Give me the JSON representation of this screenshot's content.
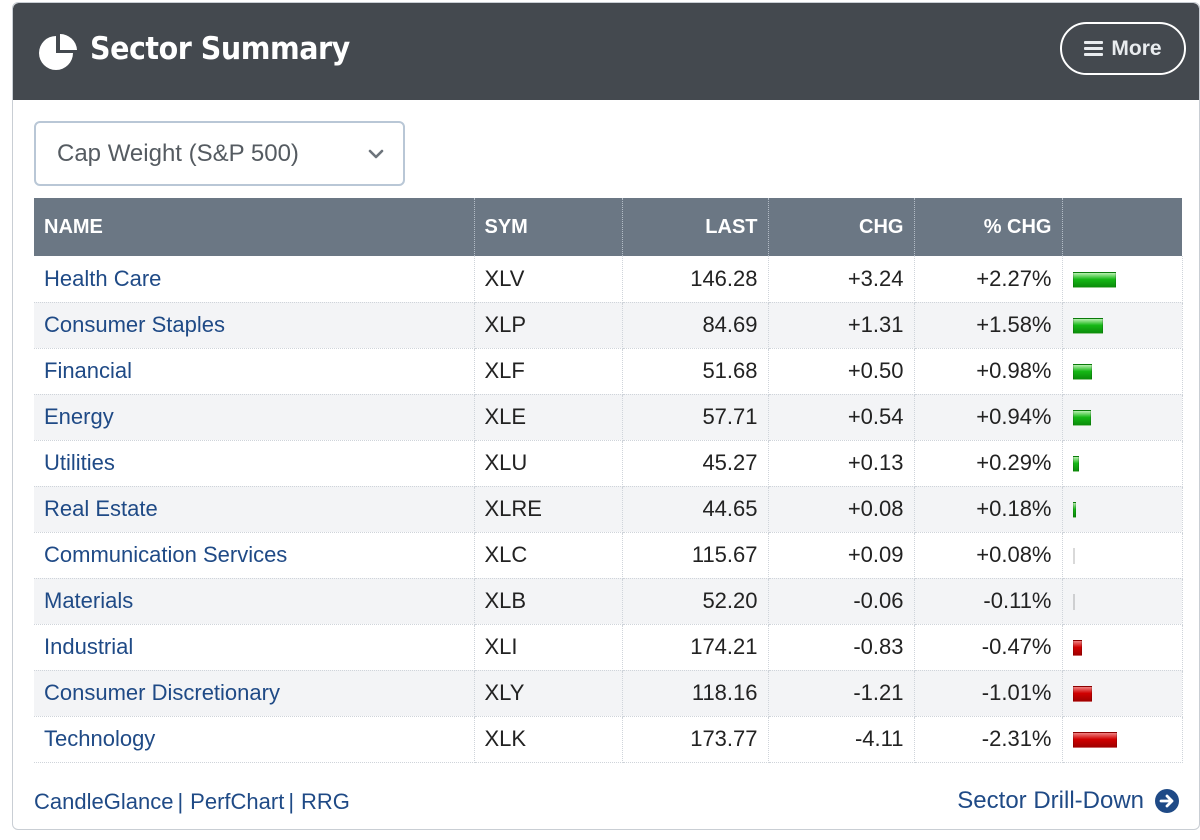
{
  "header": {
    "title": "Sector Summary",
    "more_label": "More"
  },
  "weighting": {
    "selected": "Cap Weight (S&P 500)"
  },
  "table": {
    "columns": [
      "NAME",
      "SYM",
      "LAST",
      "CHG",
      "% CHG",
      ""
    ],
    "rows": [
      {
        "name": "Health Care",
        "sym": "XLV",
        "last": "146.28",
        "chg": "+3.24",
        "pct": "+2.27%",
        "pct_value": 2.27
      },
      {
        "name": "Consumer Staples",
        "sym": "XLP",
        "last": "84.69",
        "chg": "+1.31",
        "pct": "+1.58%",
        "pct_value": 1.58
      },
      {
        "name": "Financial",
        "sym": "XLF",
        "last": "51.68",
        "chg": "+0.50",
        "pct": "+0.98%",
        "pct_value": 0.98
      },
      {
        "name": "Energy",
        "sym": "XLE",
        "last": "57.71",
        "chg": "+0.54",
        "pct": "+0.94%",
        "pct_value": 0.94
      },
      {
        "name": "Utilities",
        "sym": "XLU",
        "last": "45.27",
        "chg": "+0.13",
        "pct": "+0.29%",
        "pct_value": 0.29
      },
      {
        "name": "Real Estate",
        "sym": "XLRE",
        "last": "44.65",
        "chg": "+0.08",
        "pct": "+0.18%",
        "pct_value": 0.18
      },
      {
        "name": "Communication Services",
        "sym": "XLC",
        "last": "115.67",
        "chg": "+0.09",
        "pct": "+0.08%",
        "pct_value": 0.08
      },
      {
        "name": "Materials",
        "sym": "XLB",
        "last": "52.20",
        "chg": "-0.06",
        "pct": "-0.11%",
        "pct_value": -0.11
      },
      {
        "name": "Industrial",
        "sym": "XLI",
        "last": "174.21",
        "chg": "-0.83",
        "pct": "-0.47%",
        "pct_value": -0.47
      },
      {
        "name": "Consumer Discretionary",
        "sym": "XLY",
        "last": "118.16",
        "chg": "-1.21",
        "pct": "-1.01%",
        "pct_value": -1.01
      },
      {
        "name": "Technology",
        "sym": "XLK",
        "last": "173.77",
        "chg": "-4.11",
        "pct": "-2.31%",
        "pct_value": -2.31
      }
    ]
  },
  "footer": {
    "links": [
      "CandleGlance",
      "PerfChart",
      "RRG"
    ],
    "drill_down_label": "Sector Drill-Down"
  },
  "colors": {
    "header_bg": "#44494f",
    "table_header_bg": "#6b7784",
    "link": "#1f4a86",
    "positive": "#2a8a2a",
    "negative": "#c8102e"
  },
  "icons": {
    "title": "pie-chart-icon",
    "more": "menu-icon",
    "select": "chevron-down-icon",
    "drill_down": "arrow-circle-right-icon"
  }
}
